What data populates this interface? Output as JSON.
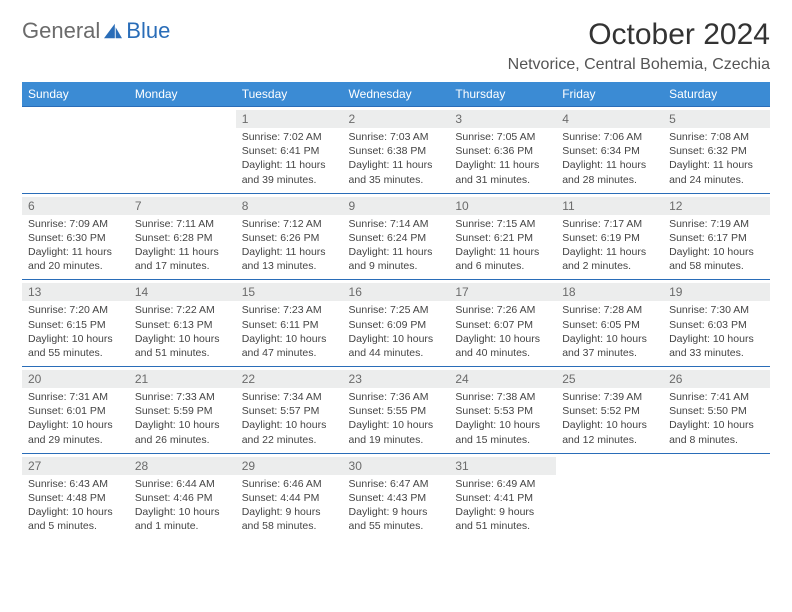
{
  "brand": {
    "part1": "General",
    "part2": "Blue"
  },
  "title": "October 2024",
  "location": "Netvorice, Central Bohemia, Czechia",
  "colors": {
    "header_bg": "#3b8bd4",
    "border": "#2a6db8",
    "daynum_bg": "#eceded",
    "text": "#333333",
    "muted": "#6b6b6b"
  },
  "day_labels": [
    "Sunday",
    "Monday",
    "Tuesday",
    "Wednesday",
    "Thursday",
    "Friday",
    "Saturday"
  ],
  "weeks": [
    [
      null,
      null,
      {
        "n": "1",
        "sr": "Sunrise: 7:02 AM",
        "ss": "Sunset: 6:41 PM",
        "dl": "Daylight: 11 hours and 39 minutes."
      },
      {
        "n": "2",
        "sr": "Sunrise: 7:03 AM",
        "ss": "Sunset: 6:38 PM",
        "dl": "Daylight: 11 hours and 35 minutes."
      },
      {
        "n": "3",
        "sr": "Sunrise: 7:05 AM",
        "ss": "Sunset: 6:36 PM",
        "dl": "Daylight: 11 hours and 31 minutes."
      },
      {
        "n": "4",
        "sr": "Sunrise: 7:06 AM",
        "ss": "Sunset: 6:34 PM",
        "dl": "Daylight: 11 hours and 28 minutes."
      },
      {
        "n": "5",
        "sr": "Sunrise: 7:08 AM",
        "ss": "Sunset: 6:32 PM",
        "dl": "Daylight: 11 hours and 24 minutes."
      }
    ],
    [
      {
        "n": "6",
        "sr": "Sunrise: 7:09 AM",
        "ss": "Sunset: 6:30 PM",
        "dl": "Daylight: 11 hours and 20 minutes."
      },
      {
        "n": "7",
        "sr": "Sunrise: 7:11 AM",
        "ss": "Sunset: 6:28 PM",
        "dl": "Daylight: 11 hours and 17 minutes."
      },
      {
        "n": "8",
        "sr": "Sunrise: 7:12 AM",
        "ss": "Sunset: 6:26 PM",
        "dl": "Daylight: 11 hours and 13 minutes."
      },
      {
        "n": "9",
        "sr": "Sunrise: 7:14 AM",
        "ss": "Sunset: 6:24 PM",
        "dl": "Daylight: 11 hours and 9 minutes."
      },
      {
        "n": "10",
        "sr": "Sunrise: 7:15 AM",
        "ss": "Sunset: 6:21 PM",
        "dl": "Daylight: 11 hours and 6 minutes."
      },
      {
        "n": "11",
        "sr": "Sunrise: 7:17 AM",
        "ss": "Sunset: 6:19 PM",
        "dl": "Daylight: 11 hours and 2 minutes."
      },
      {
        "n": "12",
        "sr": "Sunrise: 7:19 AM",
        "ss": "Sunset: 6:17 PM",
        "dl": "Daylight: 10 hours and 58 minutes."
      }
    ],
    [
      {
        "n": "13",
        "sr": "Sunrise: 7:20 AM",
        "ss": "Sunset: 6:15 PM",
        "dl": "Daylight: 10 hours and 55 minutes."
      },
      {
        "n": "14",
        "sr": "Sunrise: 7:22 AM",
        "ss": "Sunset: 6:13 PM",
        "dl": "Daylight: 10 hours and 51 minutes."
      },
      {
        "n": "15",
        "sr": "Sunrise: 7:23 AM",
        "ss": "Sunset: 6:11 PM",
        "dl": "Daylight: 10 hours and 47 minutes."
      },
      {
        "n": "16",
        "sr": "Sunrise: 7:25 AM",
        "ss": "Sunset: 6:09 PM",
        "dl": "Daylight: 10 hours and 44 minutes."
      },
      {
        "n": "17",
        "sr": "Sunrise: 7:26 AM",
        "ss": "Sunset: 6:07 PM",
        "dl": "Daylight: 10 hours and 40 minutes."
      },
      {
        "n": "18",
        "sr": "Sunrise: 7:28 AM",
        "ss": "Sunset: 6:05 PM",
        "dl": "Daylight: 10 hours and 37 minutes."
      },
      {
        "n": "19",
        "sr": "Sunrise: 7:30 AM",
        "ss": "Sunset: 6:03 PM",
        "dl": "Daylight: 10 hours and 33 minutes."
      }
    ],
    [
      {
        "n": "20",
        "sr": "Sunrise: 7:31 AM",
        "ss": "Sunset: 6:01 PM",
        "dl": "Daylight: 10 hours and 29 minutes."
      },
      {
        "n": "21",
        "sr": "Sunrise: 7:33 AM",
        "ss": "Sunset: 5:59 PM",
        "dl": "Daylight: 10 hours and 26 minutes."
      },
      {
        "n": "22",
        "sr": "Sunrise: 7:34 AM",
        "ss": "Sunset: 5:57 PM",
        "dl": "Daylight: 10 hours and 22 minutes."
      },
      {
        "n": "23",
        "sr": "Sunrise: 7:36 AM",
        "ss": "Sunset: 5:55 PM",
        "dl": "Daylight: 10 hours and 19 minutes."
      },
      {
        "n": "24",
        "sr": "Sunrise: 7:38 AM",
        "ss": "Sunset: 5:53 PM",
        "dl": "Daylight: 10 hours and 15 minutes."
      },
      {
        "n": "25",
        "sr": "Sunrise: 7:39 AM",
        "ss": "Sunset: 5:52 PM",
        "dl": "Daylight: 10 hours and 12 minutes."
      },
      {
        "n": "26",
        "sr": "Sunrise: 7:41 AM",
        "ss": "Sunset: 5:50 PM",
        "dl": "Daylight: 10 hours and 8 minutes."
      }
    ],
    [
      {
        "n": "27",
        "sr": "Sunrise: 6:43 AM",
        "ss": "Sunset: 4:48 PM",
        "dl": "Daylight: 10 hours and 5 minutes."
      },
      {
        "n": "28",
        "sr": "Sunrise: 6:44 AM",
        "ss": "Sunset: 4:46 PM",
        "dl": "Daylight: 10 hours and 1 minute."
      },
      {
        "n": "29",
        "sr": "Sunrise: 6:46 AM",
        "ss": "Sunset: 4:44 PM",
        "dl": "Daylight: 9 hours and 58 minutes."
      },
      {
        "n": "30",
        "sr": "Sunrise: 6:47 AM",
        "ss": "Sunset: 4:43 PM",
        "dl": "Daylight: 9 hours and 55 minutes."
      },
      {
        "n": "31",
        "sr": "Sunrise: 6:49 AM",
        "ss": "Sunset: 4:41 PM",
        "dl": "Daylight: 9 hours and 51 minutes."
      },
      null,
      null
    ]
  ]
}
